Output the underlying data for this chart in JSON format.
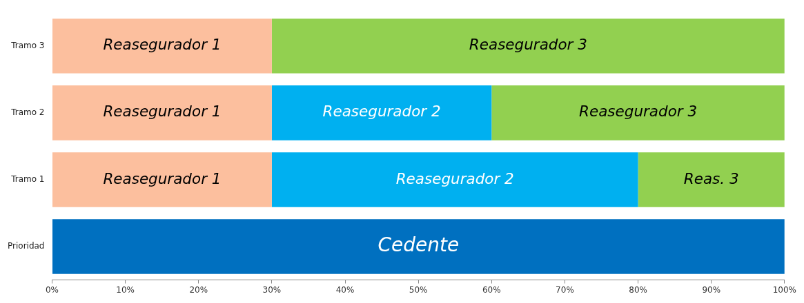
{
  "chart_data": {
    "type": "bar",
    "orientation": "horizontal",
    "stacked": true,
    "legend": false,
    "categories": [
      "Tramo 3",
      "Tramo 2",
      "Tramo 1",
      "Prioridad"
    ],
    "xlim": [
      0,
      100
    ],
    "xticks": [
      {
        "value": 0,
        "label": "0%"
      },
      {
        "value": 10,
        "label": "10%"
      },
      {
        "value": 20,
        "label": "20%"
      },
      {
        "value": 30,
        "label": "30%"
      },
      {
        "value": 40,
        "label": "40%"
      },
      {
        "value": 50,
        "label": "50%"
      },
      {
        "value": 60,
        "label": "60%"
      },
      {
        "value": 70,
        "label": "70%"
      },
      {
        "value": 80,
        "label": "80%"
      },
      {
        "value": 90,
        "label": "90%"
      },
      {
        "value": 100,
        "label": "100%"
      }
    ],
    "series": [
      {
        "name": "Reasegurador 1",
        "color": "#fcbf9e",
        "values": [
          30,
          30,
          30,
          null
        ]
      },
      {
        "name": "Reasegurador 2",
        "color": "#00b0f0",
        "values": [
          null,
          30,
          50,
          null
        ]
      },
      {
        "name": "Reasegurador 3",
        "color": "#92d050",
        "values": [
          70,
          40,
          20,
          null
        ]
      },
      {
        "name": "Cedente",
        "color": "#0070c0",
        "values": [
          null,
          null,
          null,
          100
        ]
      }
    ],
    "annotations": [
      {
        "text": "Reas. 3",
        "x": 90,
        "y": "Tramo 1"
      }
    ]
  }
}
